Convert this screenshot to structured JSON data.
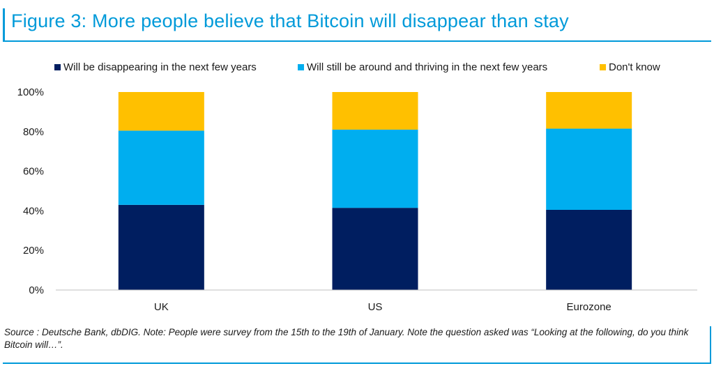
{
  "title": "Figure 3: More people believe that Bitcoin will disappear than stay",
  "source": "Source : Deutsche Bank, dbDIG. Note: People were survey from the 15th to the 19th of January. Note the question asked was “Looking at the following, do you think Bitcoin will…”.",
  "colors": {
    "accent": "#009ad9",
    "disappearing": "#001e60",
    "around": "#00aeef",
    "dont_know": "#ffc000"
  },
  "chart_data": {
    "type": "bar",
    "stacked": true,
    "categories": [
      "UK",
      "US",
      "Eurozone"
    ],
    "series": [
      {
        "name": "Will be disappearing in the next few years",
        "values": [
          43,
          41.5,
          40.5
        ],
        "color": "#001e60"
      },
      {
        "name": "Will still be around and thriving in the next few years",
        "values": [
          37.5,
          39.5,
          41
        ],
        "color": "#00aeef"
      },
      {
        "name": "Don't know",
        "values": [
          19.5,
          19,
          18.5
        ],
        "color": "#ffc000"
      }
    ],
    "yticks": [
      "0%",
      "20%",
      "40%",
      "60%",
      "80%",
      "100%"
    ],
    "ylim": [
      0,
      100
    ],
    "grid": false,
    "legend_position": "top"
  }
}
